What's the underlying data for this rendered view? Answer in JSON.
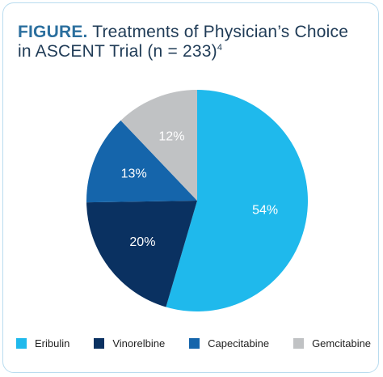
{
  "figure": {
    "lead": "FIGURE.",
    "title_line1": "Treatments of Physician’s Choice",
    "title_line2": "in ASCENT Trial (n = 233)",
    "title_sup": "4"
  },
  "chart_data": {
    "type": "pie",
    "slices": [
      {
        "label": "Eribulin",
        "value": 54,
        "display": "54%",
        "color": "#1fb9ec",
        "text_color": "#ffffff"
      },
      {
        "label": "Vinorelbine",
        "value": 20,
        "display": "20%",
        "color": "#0a3161",
        "text_color": "#ffffff"
      },
      {
        "label": "Capecitabine",
        "value": 13,
        "display": "13%",
        "color": "#1565ab",
        "text_color": "#ffffff"
      },
      {
        "label": "Gemcitabine",
        "value": 12,
        "display": "12%",
        "color": "#c0c2c4",
        "text_color": "#ffffff"
      }
    ],
    "start": "12 o'clock",
    "direction": "clockwise",
    "legend_position": "bottom"
  }
}
